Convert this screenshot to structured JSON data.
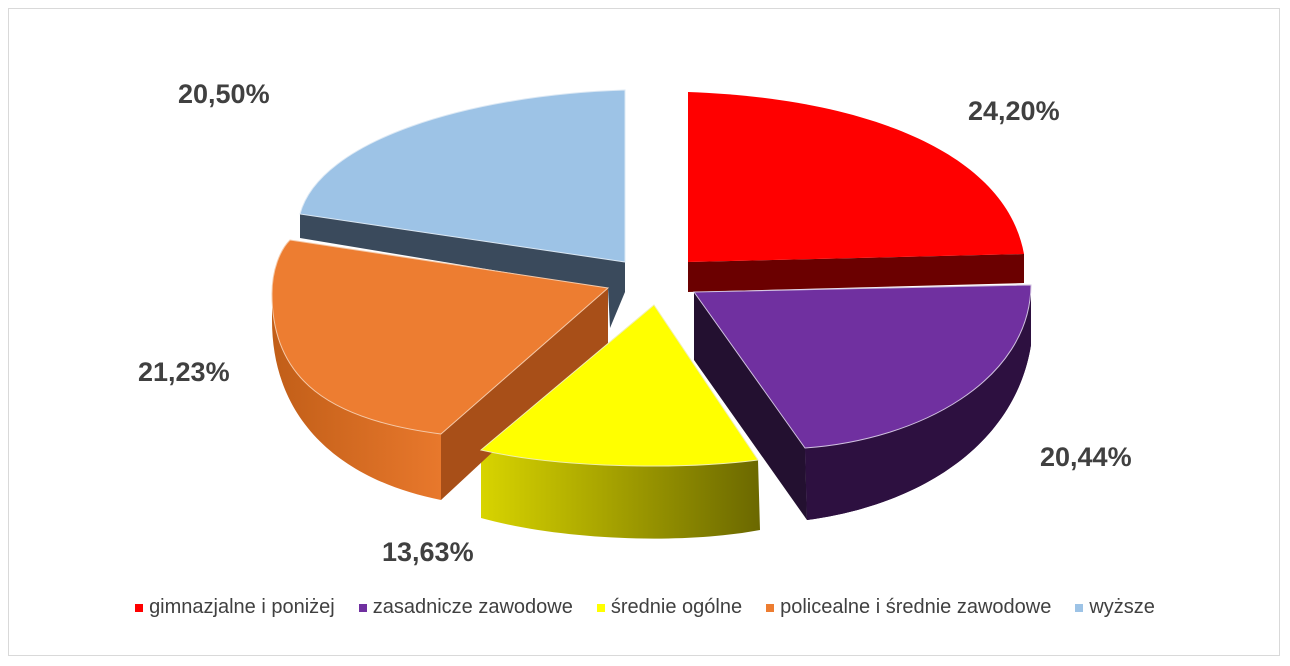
{
  "chart_data": {
    "type": "pie",
    "title": "",
    "series": [
      {
        "label": "gimnazjalne i poniżej",
        "value": 24.2,
        "display": "24,20%",
        "color": "#ff0000"
      },
      {
        "label": "zasadnicze zawodowe",
        "value": 20.44,
        "display": "20,44%",
        "color": "#7030a0"
      },
      {
        "label": "średnie ogólne",
        "value": 13.63,
        "display": "13,63%",
        "color": "#ffff00"
      },
      {
        "label": "policealne i średnie zawodowe",
        "value": 21.23,
        "display": "21,23%",
        "color": "#ed7d31"
      },
      {
        "label": "wyższe",
        "value": 20.5,
        "display": "20,50%",
        "color": "#9dc3e6"
      }
    ],
    "legend_position": "bottom",
    "style": "3d-exploded"
  }
}
